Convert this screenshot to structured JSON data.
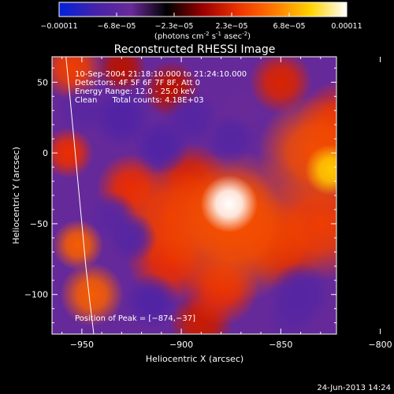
{
  "colorbar": {
    "ticks": [
      "-0.00011",
      "-6.8e-05",
      "-2.3e-05",
      "2.3e-05",
      "6.8e-05",
      "0.00011"
    ],
    "unit_prefix": "(photons cm",
    "unit_exp1": "-2",
    "unit_mid": " s",
    "unit_exp2": "-1",
    "unit_mid2": " asec",
    "unit_exp3": "-2",
    "unit_suffix": ")",
    "colors": [
      "#0022dd",
      "#4422aa",
      "#6a2a98",
      "#000000",
      "#990000",
      "#ee3300",
      "#ff7a00",
      "#ffd400",
      "#ffffff"
    ]
  },
  "chart_data": {
    "type": "heatmap",
    "title": "Reconstructed RHESSI Image",
    "xlabel": "Heliocentric X (arcsec)",
    "ylabel": "Heliocentric Y (arcsec)",
    "xlim": [
      -965,
      -822
    ],
    "ylim": [
      -128,
      68
    ],
    "x_ticks": [
      -950,
      -900,
      -850,
      -800
    ],
    "y_ticks": [
      50,
      0,
      -50,
      -100
    ],
    "x_tick_labels": [
      "−950",
      "−900",
      "−850",
      "−800"
    ],
    "y_tick_labels": [
      "50",
      "0",
      "−50",
      "−100"
    ],
    "colorbar_range": [
      -0.00011,
      0.00011
    ],
    "peak": [
      -874,
      -37
    ],
    "annotations": [
      "10-Sep-2004 21:18:10.000 to 21:24:10.000",
      "Detectors: 4F 5F 6F 7F 8F, Att 0",
      "Energy Range: 12.0 - 25.0 keV",
      "Clean      Total counts: 4.18E+03"
    ],
    "peak_label": "Position of Peak = [−874,−37]",
    "limb_points": [
      [
        -958,
        68
      ],
      [
        -956,
        40
      ],
      [
        -954,
        10
      ],
      [
        -952,
        -20
      ],
      [
        -950,
        -50
      ],
      [
        -948,
        -80
      ],
      [
        -946,
        -105
      ],
      [
        -944,
        -128
      ]
    ],
    "blobs": [
      {
        "x": -876,
        "y": -36,
        "r": 9,
        "v": 1.0
      },
      {
        "x": -874,
        "y": -44,
        "r": 16,
        "v": 0.55
      },
      {
        "x": -873,
        "y": -52,
        "r": 24,
        "v": 0.55
      },
      {
        "x": -905,
        "y": -45,
        "r": 16,
        "v": 0.5
      },
      {
        "x": -895,
        "y": -20,
        "r": 12,
        "v": 0.4
      },
      {
        "x": -825,
        "y": -12,
        "r": 8,
        "v": 0.85
      },
      {
        "x": -833,
        "y": 0,
        "r": 18,
        "v": 0.55
      },
      {
        "x": -820,
        "y": 20,
        "r": 14,
        "v": 0.45
      },
      {
        "x": -850,
        "y": 50,
        "r": 10,
        "v": 0.4
      },
      {
        "x": -830,
        "y": -50,
        "r": 18,
        "v": 0.5
      },
      {
        "x": -850,
        "y": -65,
        "r": 14,
        "v": 0.4
      },
      {
        "x": -905,
        "y": -75,
        "r": 14,
        "v": 0.45
      },
      {
        "x": -925,
        "y": -25,
        "r": 11,
        "v": 0.45
      },
      {
        "x": -957,
        "y": 0,
        "r": 8,
        "v": 0.45
      },
      {
        "x": -952,
        "y": -65,
        "r": 8,
        "v": 0.6
      },
      {
        "x": -945,
        "y": -100,
        "r": 10,
        "v": 0.6
      },
      {
        "x": -880,
        "y": -95,
        "r": 12,
        "v": 0.45
      },
      {
        "x": -890,
        "y": -120,
        "r": 10,
        "v": 0.35
      },
      {
        "x": -955,
        "y": 60,
        "r": 10,
        "v": 0.5
      },
      {
        "x": -930,
        "y": 60,
        "r": 8,
        "v": 0.3
      },
      {
        "x": -905,
        "y": 45,
        "r": 9,
        "v": 0.3
      },
      {
        "x": -930,
        "y": 25,
        "r": 10,
        "v": -0.6
      },
      {
        "x": -950,
        "y": 30,
        "r": 8,
        "v": -0.5
      },
      {
        "x": -895,
        "y": 25,
        "r": 9,
        "v": -0.55
      },
      {
        "x": -910,
        "y": 5,
        "r": 9,
        "v": -0.6
      },
      {
        "x": -875,
        "y": 10,
        "r": 8,
        "v": -0.55
      },
      {
        "x": -935,
        "y": -45,
        "r": 8,
        "v": -0.5
      },
      {
        "x": -925,
        "y": -60,
        "r": 8,
        "v": -0.55
      },
      {
        "x": -915,
        "y": -105,
        "r": 9,
        "v": -0.6
      },
      {
        "x": -840,
        "y": -100,
        "r": 10,
        "v": -0.55
      },
      {
        "x": -805,
        "y": -88,
        "r": 7,
        "v": -0.9
      },
      {
        "x": -845,
        "y": -115,
        "r": 8,
        "v": -0.5
      },
      {
        "x": -870,
        "y": 30,
        "r": 7,
        "v": -0.35
      },
      {
        "x": -960,
        "y": -110,
        "r": 6,
        "v": -0.4
      }
    ]
  },
  "footer": {
    "timestamp": "24-Jun-2013 14:24"
  }
}
